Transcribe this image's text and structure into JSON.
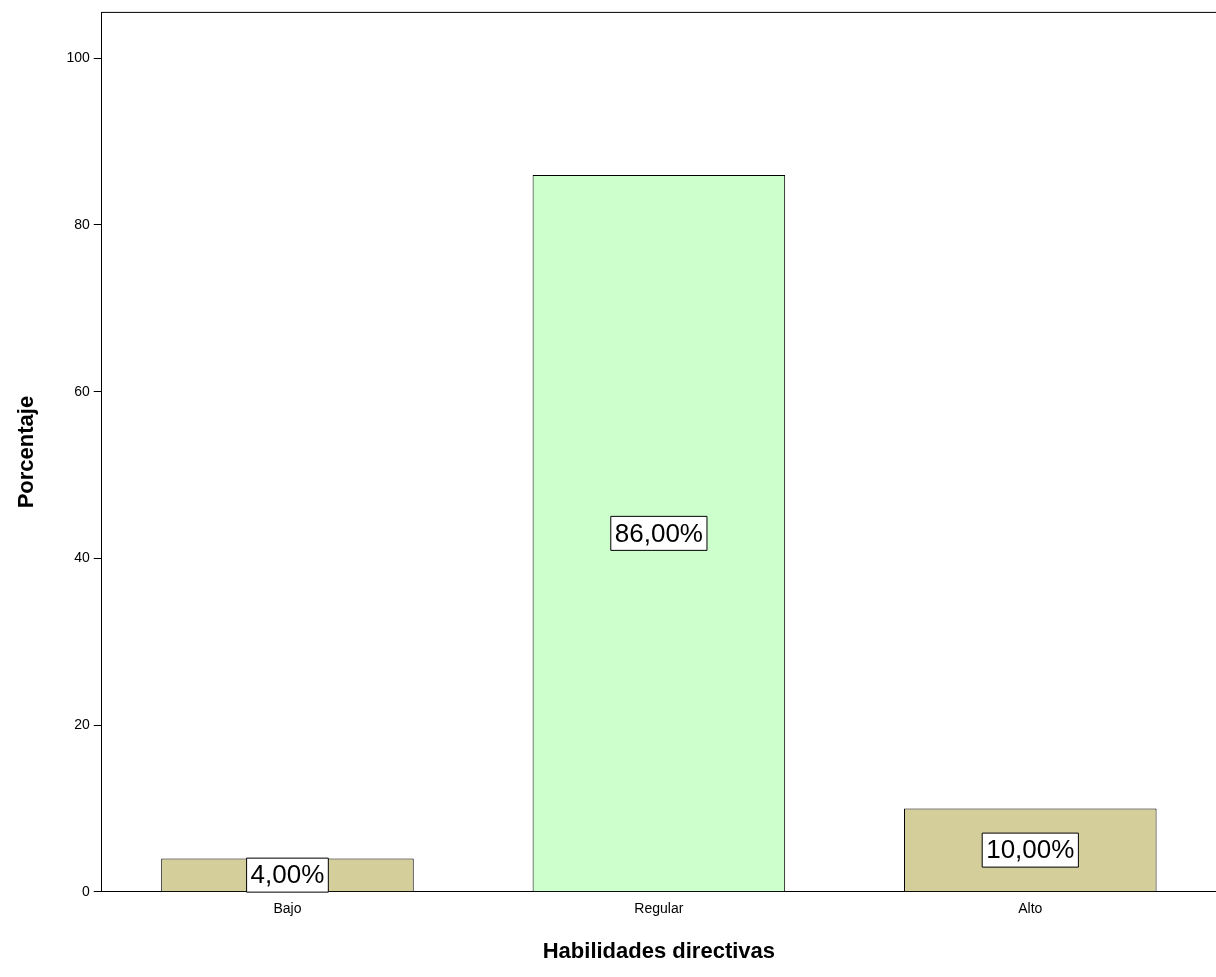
{
  "chart_data": {
    "type": "bar",
    "xlabel": "Habilidades directivas",
    "ylabel": "Porcentaje",
    "categories": [
      "Bajo",
      "Regular",
      "Alto"
    ],
    "values": [
      4,
      86,
      10
    ],
    "colors": [
      "#d3ce9a",
      "#ccffcc",
      "#d3ce9a"
    ],
    "value_labels": [
      "4,00%",
      "86,00%",
      "10,00%"
    ],
    "ylim": [
      0,
      105.5
    ],
    "yticks": [
      0,
      20,
      40,
      60,
      80,
      100
    ],
    "grid": false,
    "legend": false
  }
}
